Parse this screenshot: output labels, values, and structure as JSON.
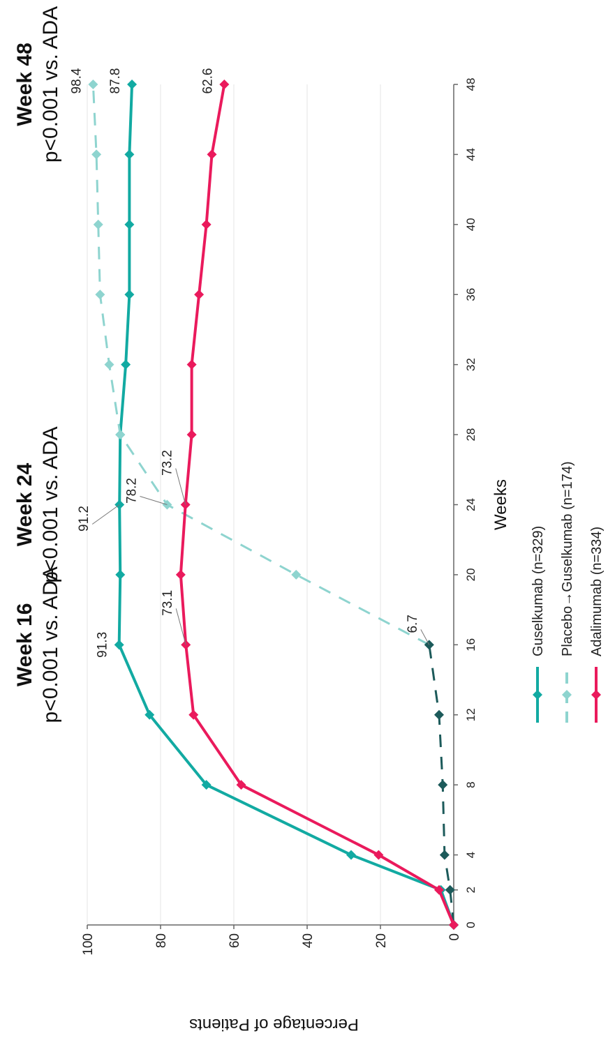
{
  "chart_data": {
    "type": "line",
    "title": "",
    "xlabel": "Weeks",
    "ylabel": "Percentage of Patients",
    "x_ticks": [
      "0",
      "2",
      "4",
      "8",
      "12",
      "16",
      "20",
      "24",
      "28",
      "32",
      "36",
      "40",
      "44",
      "48"
    ],
    "x_values": [
      0,
      2,
      4,
      8,
      12,
      16,
      20,
      24,
      28,
      32,
      36,
      40,
      44,
      48
    ],
    "xlim": [
      0,
      48
    ],
    "y_ticks": [
      "0",
      "20",
      "40",
      "60",
      "80",
      "100"
    ],
    "ylim": [
      0,
      100
    ],
    "grid": true,
    "legend_position": "bottom",
    "series": [
      {
        "name": "Guselkumab (n=329)",
        "color": "#12aaa2",
        "dash": "solid",
        "points": [
          [
            0,
            0
          ],
          [
            2,
            3.5
          ],
          [
            4,
            28
          ],
          [
            8,
            67.5
          ],
          [
            12,
            83
          ],
          [
            16,
            91.3
          ],
          [
            20,
            91
          ],
          [
            24,
            91.2
          ],
          [
            28,
            91
          ],
          [
            32,
            89.5
          ],
          [
            36,
            88.5
          ],
          [
            40,
            88.5
          ],
          [
            44,
            88.5
          ],
          [
            48,
            87.8
          ]
        ]
      },
      {
        "name": "Placebo→Guselkumab (n=174)",
        "color": "#8ed4cf",
        "dash": "dashed",
        "points": [
          [
            16,
            6.7
          ],
          [
            20,
            43
          ],
          [
            24,
            78.2
          ],
          [
            28,
            91
          ],
          [
            32,
            94
          ],
          [
            36,
            96.5
          ],
          [
            40,
            97
          ],
          [
            44,
            97.5
          ],
          [
            48,
            98.4
          ]
        ]
      },
      {
        "name": "",
        "color": "#1c5a5a",
        "dash": "dashed",
        "points": [
          [
            0,
            0
          ],
          [
            2,
            1
          ],
          [
            4,
            2.5
          ],
          [
            8,
            3
          ],
          [
            12,
            4
          ],
          [
            16,
            6.7
          ]
        ]
      },
      {
        "name": "Adalimumab (n=334)",
        "color": "#ea1a5c",
        "dash": "solid",
        "points": [
          [
            0,
            0
          ],
          [
            2,
            4
          ],
          [
            4,
            20.5
          ],
          [
            8,
            58
          ],
          [
            12,
            71
          ],
          [
            16,
            73.1
          ],
          [
            20,
            74.5
          ],
          [
            24,
            73.2
          ],
          [
            28,
            71.5
          ],
          [
            32,
            71.5
          ],
          [
            36,
            69.5
          ],
          [
            40,
            67.5
          ],
          [
            44,
            66
          ],
          [
            48,
            62.6
          ]
        ]
      }
    ],
    "data_labels": [
      {
        "text": "91.3",
        "x": 16,
        "y": 91.3
      },
      {
        "text": "91.2",
        "x": 24,
        "y": 91.2
      },
      {
        "text": "78.2",
        "x": 24,
        "y": 78.2
      },
      {
        "text": "73.2",
        "x": 24,
        "y": 73.2
      },
      {
        "text": "73.1",
        "x": 16,
        "y": 73.1
      },
      {
        "text": "6.7",
        "x": 16,
        "y": 6.7
      },
      {
        "text": "98.4",
        "x": 48,
        "y": 98.4
      },
      {
        "text": "87.8",
        "x": 48,
        "y": 87.8
      },
      {
        "text": "62.6",
        "x": 48,
        "y": 62.6
      }
    ],
    "annotations": [
      {
        "line1": "Week 16",
        "line2": "p<0.001 vs. ADA",
        "x": 16
      },
      {
        "line1": "Week 24",
        "line2": "p<0.001 vs. ADA",
        "x": 24
      },
      {
        "line1": "Week 48",
        "line2": "p<0.001 vs. ADA",
        "x": 48
      }
    ]
  }
}
